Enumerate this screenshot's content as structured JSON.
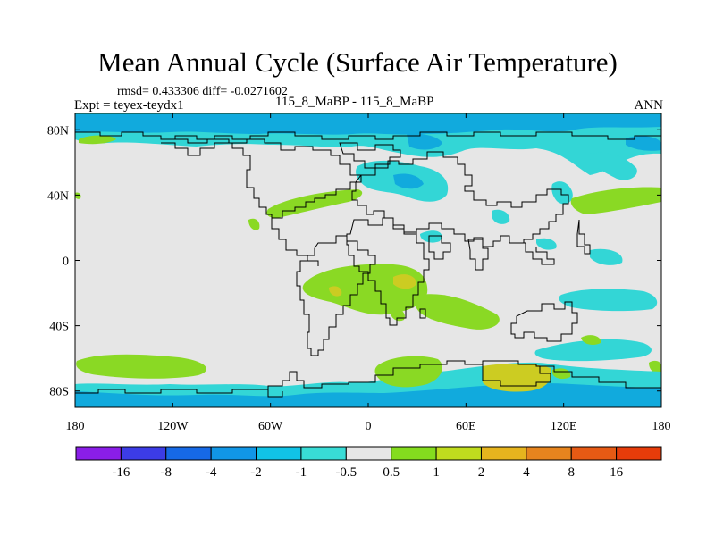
{
  "title": "Mean Annual Cycle (Surface Air Temperature)",
  "stats_line": "rmsd= 0.433306 diff= -0.0271602",
  "experiment_label": "Expt = teyex-teydx1",
  "case_label": "115_8_MaBP - 115_8_MaBP",
  "season_label": "ANN",
  "colors": {
    "background_field": "#e6e6e6",
    "coastline": "#000000",
    "cyan": "#33d6d6",
    "light_blue": "#11aadd",
    "green": "#8ad924",
    "yellow_green": "#cccc22"
  },
  "map": {
    "projection": "cylindrical-equidistant",
    "lon_range": [
      -180,
      180
    ],
    "lat_range": [
      -90,
      90
    ],
    "x_ticks": [
      "180",
      "120W",
      "60W",
      "0",
      "60E",
      "120E",
      "180"
    ],
    "x_tick_values": [
      -180,
      -120,
      -60,
      0,
      60,
      120,
      180
    ],
    "y_ticks": [
      "80N",
      "40N",
      "0",
      "40S",
      "80S"
    ],
    "y_tick_values": [
      80,
      40,
      0,
      -40,
      -80
    ]
  },
  "colorbar": {
    "labels": [
      "-16",
      "-8",
      "-4",
      "-2",
      "-1",
      "-0.5",
      "0.5",
      "1",
      "2",
      "4",
      "8",
      "16"
    ],
    "colors": [
      "#8a1ee8",
      "#3c3ce6",
      "#1669e6",
      "#1196e6",
      "#11c3e6",
      "#38dcd6",
      "#e6e6e6",
      "#84dc1e",
      "#c0dc1e",
      "#e6b41e",
      "#e6841e",
      "#e65a14",
      "#e63c0a"
    ]
  }
}
